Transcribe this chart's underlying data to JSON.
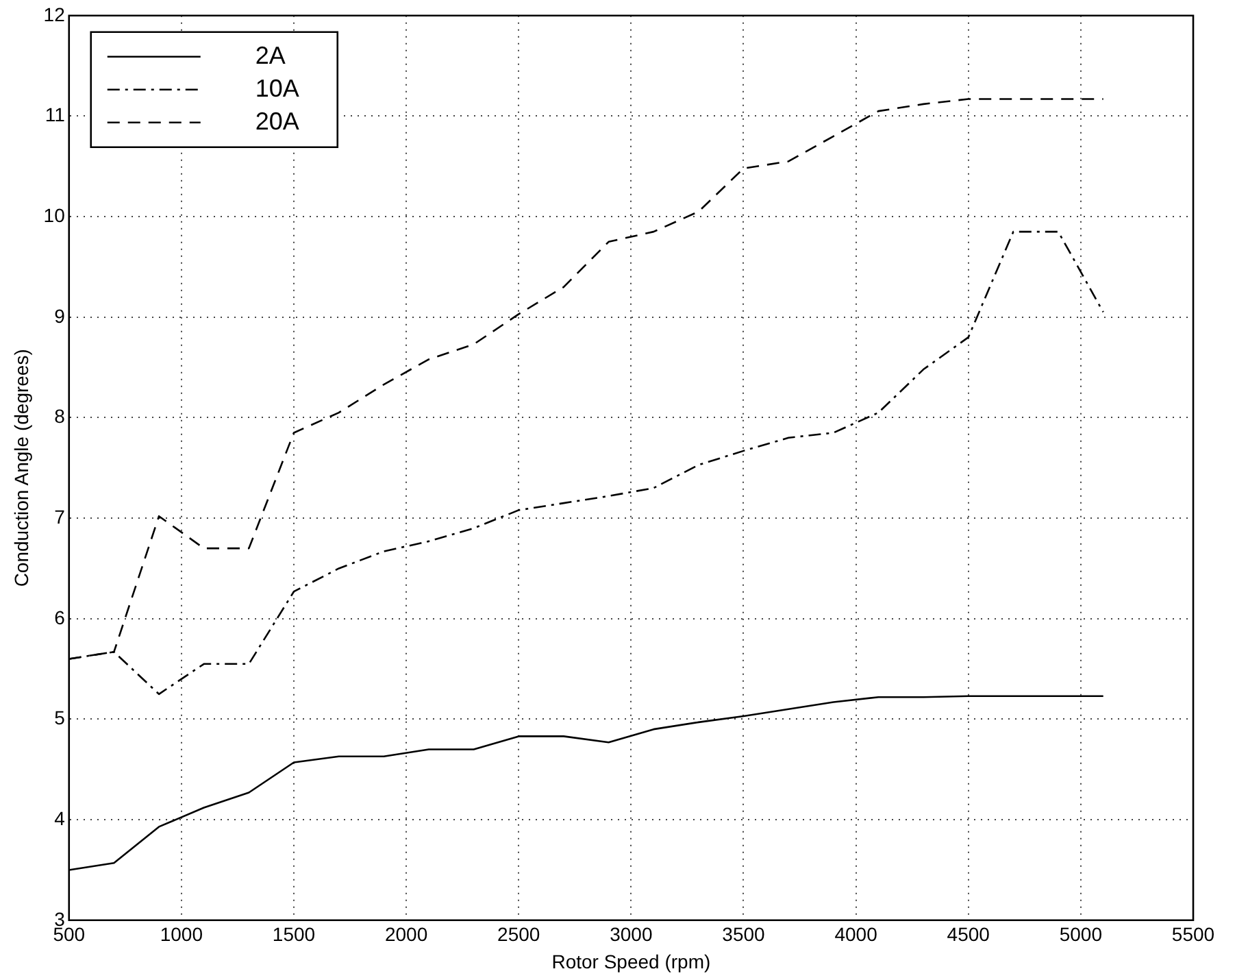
{
  "chart_data": {
    "type": "line",
    "xlabel": "Rotor Speed (rpm)",
    "ylabel": "Conduction Angle (degrees)",
    "x": [
      500,
      700,
      900,
      1100,
      1300,
      1500,
      1700,
      1900,
      2100,
      2300,
      2500,
      2700,
      2900,
      3100,
      3300,
      3500,
      3700,
      3900,
      4100,
      4300,
      4500,
      4700,
      4900,
      5100
    ],
    "series": [
      {
        "name": "2A",
        "color": "#000000",
        "line_style": "solid",
        "values": [
          3.5,
          3.57,
          3.93,
          4.12,
          4.27,
          4.57,
          4.63,
          4.63,
          4.7,
          4.7,
          4.83,
          4.83,
          4.77,
          4.9,
          4.97,
          5.03,
          5.1,
          5.17,
          5.22,
          5.22,
          5.23,
          5.23,
          5.23,
          5.23
        ]
      },
      {
        "name": "10A",
        "color": "#000000",
        "line_style": "dashdot",
        "values": [
          5.6,
          5.67,
          5.25,
          5.55,
          5.55,
          6.27,
          6.5,
          6.67,
          6.77,
          6.9,
          7.08,
          7.15,
          7.22,
          7.3,
          7.53,
          7.67,
          7.8,
          7.85,
          8.05,
          8.48,
          8.8,
          9.85,
          9.85,
          9.05
        ]
      },
      {
        "name": "20A",
        "color": "#000000",
        "line_style": "dashed",
        "values": [
          5.6,
          5.67,
          7.02,
          6.7,
          6.7,
          7.85,
          8.05,
          8.33,
          8.58,
          8.73,
          9.03,
          9.3,
          9.75,
          9.85,
          10.05,
          10.48,
          10.55,
          10.8,
          11.05,
          11.12,
          11.17,
          11.17,
          11.17,
          11.17
        ]
      }
    ],
    "xlim": [
      500,
      5500
    ],
    "xticks": [
      500,
      1000,
      1500,
      2000,
      2500,
      3000,
      3500,
      4000,
      4500,
      5000,
      5500
    ],
    "ylim": [
      3,
      12
    ],
    "yticks": [
      3,
      4,
      5,
      6,
      7,
      8,
      9,
      10,
      11,
      12
    ],
    "grid": true,
    "legend": "top left",
    "marker": "none"
  }
}
